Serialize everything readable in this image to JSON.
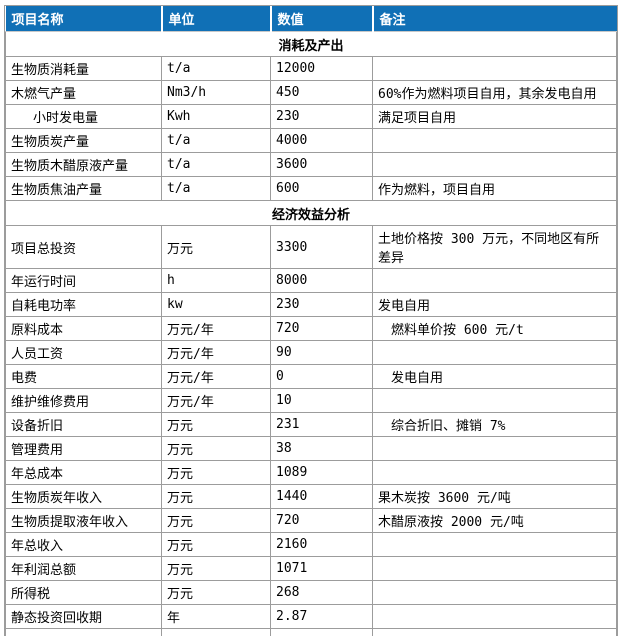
{
  "colors": {
    "header_bg": "#1070b6",
    "header_text": "#ffffff",
    "grid_line": "#9c9c9c"
  },
  "table": {
    "headers": [
      "项目名称",
      "单位",
      "数值",
      "备注"
    ],
    "sections": [
      {
        "title": "消耗及产出",
        "rows": [
          {
            "name": "生物质消耗量",
            "unit": "t/a",
            "value": "12000",
            "remark": ""
          },
          {
            "name": "木燃气产量",
            "unit": "Nm3/h",
            "value": "450",
            "remark": "60%作为燃料项目自用，其余发电自用"
          },
          {
            "name": "小时发电量",
            "name_indent": true,
            "unit": "Kwh",
            "value": "230",
            "remark": "满足项目自用"
          },
          {
            "name": "生物质炭产量",
            "unit": "t/a",
            "value": "4000",
            "remark": ""
          },
          {
            "name": "生物质木醋原液产量",
            "unit": "t/a",
            "value": "3600",
            "remark": ""
          },
          {
            "name": "生物质焦油产量",
            "unit": "t/a",
            "value": "600",
            "remark": "作为燃料，项目自用"
          }
        ]
      },
      {
        "title": "经济效益分析",
        "rows": [
          {
            "name": "项目总投资",
            "unit": "万元",
            "value": "3300",
            "remark": "土地价格按 300 万元，不同地区有所差异"
          },
          {
            "name": "年运行时间",
            "unit": "h",
            "value": "8000",
            "remark": ""
          },
          {
            "name": "自耗电功率",
            "unit": "kw",
            "value": "230",
            "remark": "发电自用"
          },
          {
            "name": "原料成本",
            "unit": "万元/年",
            "value": "720",
            "remark": "燃料单价按 600 元/t",
            "remark_indent": true
          },
          {
            "name": "人员工资",
            "unit": "万元/年",
            "value": "90",
            "remark": ""
          },
          {
            "name": "电费",
            "unit": "万元/年",
            "value": "0",
            "remark": "发电自用",
            "remark_indent": true
          },
          {
            "name": "维护维修费用",
            "unit": "万元/年",
            "value": "10",
            "remark": ""
          },
          {
            "name": "设备折旧",
            "unit": "万元",
            "value": "231",
            "remark": "综合折旧、摊销 7%",
            "remark_indent": true
          },
          {
            "name": "管理费用",
            "unit": "万元",
            "value": "38",
            "remark": ""
          },
          {
            "name": "年总成本",
            "unit": "万元",
            "value": "1089",
            "remark": ""
          },
          {
            "name": "生物质炭年收入",
            "unit": "万元",
            "value": "1440",
            "remark": "果木炭按 3600 元/吨"
          },
          {
            "name": "生物质提取液年收入",
            "unit": "万元",
            "value": "720",
            "remark": "木醋原液按 2000 元/吨"
          },
          {
            "name": "年总收入",
            "unit": "万元",
            "value": "2160",
            "remark": ""
          },
          {
            "name": "年利润总额",
            "unit": "万元",
            "value": "1071",
            "remark": ""
          },
          {
            "name": "所得税",
            "unit": "万元",
            "value": "268",
            "remark": ""
          },
          {
            "name": "静态投资回收期",
            "unit": "年",
            "value": "2.87",
            "remark": ""
          }
        ]
      }
    ],
    "has_trailing_empty_row": true
  }
}
